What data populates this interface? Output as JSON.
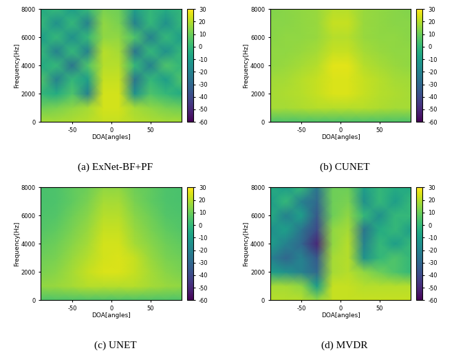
{
  "chart_data": [
    {
      "type": "heatmap",
      "caption": "(a) ExNet-BF+PF",
      "x_label": "DOA[angles]",
      "y_label": "Frequency[Hz]",
      "x": [
        -90,
        -70,
        -50,
        -30,
        -10,
        10,
        30,
        50,
        70,
        90
      ],
      "y": [
        0,
        1000,
        2000,
        3000,
        4000,
        5000,
        6000,
        7000,
        8000
      ],
      "xlim": [
        -90,
        90
      ],
      "xticks": [
        -50,
        0,
        50
      ],
      "ylim": [
        0,
        8000
      ],
      "yticks": [
        0,
        2000,
        4000,
        6000,
        8000
      ],
      "colorbar_range": [
        -60,
        30
      ],
      "colorbar_ticks": [
        -60,
        -50,
        -40,
        -30,
        -20,
        -10,
        0,
        10,
        20,
        30
      ],
      "cells": [
        [
          18,
          18,
          19,
          20,
          22,
          22,
          20,
          19,
          18,
          18
        ],
        [
          10,
          12,
          15,
          18,
          24,
          24,
          18,
          15,
          12,
          10
        ],
        [
          0,
          -5,
          5,
          -20,
          24,
          24,
          -15,
          5,
          0,
          -5
        ],
        [
          5,
          -20,
          0,
          -10,
          22,
          22,
          -25,
          0,
          -10,
          5
        ],
        [
          -5,
          0,
          -25,
          5,
          20,
          20,
          0,
          -20,
          5,
          0
        ],
        [
          0,
          -20,
          0,
          -20,
          20,
          18,
          -25,
          0,
          -15,
          0
        ],
        [
          -10,
          0,
          -15,
          0,
          15,
          15,
          5,
          -20,
          0,
          -10
        ],
        [
          0,
          -15,
          0,
          -20,
          15,
          12,
          -20,
          0,
          -15,
          0
        ],
        [
          -5,
          0,
          -10,
          0,
          12,
          10,
          -10,
          0,
          -5,
          0
        ]
      ]
    },
    {
      "type": "heatmap",
      "caption": "(b) CUNET",
      "x_label": "DOA[angles]",
      "y_label": "Frequency[Hz]",
      "x": [
        -90,
        -70,
        -50,
        -30,
        -10,
        10,
        30,
        50,
        70,
        90
      ],
      "y": [
        0,
        1000,
        2000,
        3000,
        4000,
        5000,
        6000,
        7000,
        8000
      ],
      "xlim": [
        -90,
        90
      ],
      "xticks": [
        -50,
        0,
        50
      ],
      "ylim": [
        0,
        8000
      ],
      "yticks": [
        0,
        2000,
        4000,
        6000,
        8000
      ],
      "colorbar_range": [
        -60,
        30
      ],
      "colorbar_ticks": [
        -60,
        -50,
        -40,
        -30,
        -20,
        -10,
        0,
        10,
        20,
        30
      ],
      "cells": [
        [
          5,
          5,
          5,
          5,
          5,
          5,
          5,
          5,
          5,
          5
        ],
        [
          18,
          18,
          19,
          20,
          20,
          20,
          20,
          19,
          18,
          18
        ],
        [
          18,
          19,
          20,
          22,
          25,
          25,
          22,
          20,
          19,
          18
        ],
        [
          17,
          18,
          20,
          22,
          25,
          25,
          22,
          20,
          18,
          17
        ],
        [
          15,
          16,
          18,
          20,
          26,
          26,
          20,
          18,
          16,
          15
        ],
        [
          15,
          15,
          16,
          18,
          22,
          22,
          18,
          16,
          15,
          15
        ],
        [
          14,
          15,
          15,
          16,
          20,
          20,
          16,
          15,
          15,
          14
        ],
        [
          14,
          14,
          15,
          16,
          22,
          22,
          16,
          15,
          14,
          14
        ],
        [
          13,
          14,
          15,
          16,
          20,
          20,
          16,
          15,
          14,
          13
        ]
      ]
    },
    {
      "type": "heatmap",
      "caption": "(c) UNET",
      "x_label": "DOA[angles]",
      "y_label": "Frequency[Hz]",
      "x": [
        -90,
        -70,
        -50,
        -30,
        -10,
        10,
        30,
        50,
        70,
        90
      ],
      "y": [
        0,
        1000,
        2000,
        3000,
        4000,
        5000,
        6000,
        7000,
        8000
      ],
      "xlim": [
        -90,
        90
      ],
      "xticks": [
        -50,
        0,
        50
      ],
      "ylim": [
        0,
        8000
      ],
      "yticks": [
        0,
        2000,
        4000,
        6000,
        8000
      ],
      "colorbar_range": [
        -60,
        30
      ],
      "colorbar_ticks": [
        -60,
        -50,
        -40,
        -30,
        -20,
        -10,
        0,
        10,
        20,
        30
      ],
      "cells": [
        [
          5,
          5,
          5,
          5,
          5,
          5,
          5,
          5,
          5,
          5
        ],
        [
          15,
          16,
          18,
          20,
          20,
          20,
          20,
          18,
          16,
          15
        ],
        [
          12,
          14,
          18,
          22,
          25,
          25,
          22,
          18,
          14,
          12
        ],
        [
          10,
          12,
          16,
          20,
          24,
          25,
          22,
          16,
          12,
          10
        ],
        [
          8,
          10,
          14,
          18,
          24,
          24,
          18,
          14,
          10,
          8
        ],
        [
          6,
          8,
          12,
          16,
          22,
          22,
          16,
          12,
          8,
          6
        ],
        [
          5,
          6,
          10,
          14,
          20,
          20,
          14,
          10,
          6,
          5
        ],
        [
          4,
          5,
          8,
          12,
          18,
          18,
          12,
          8,
          5,
          4
        ],
        [
          4,
          5,
          8,
          10,
          15,
          15,
          10,
          8,
          5,
          4
        ]
      ]
    },
    {
      "type": "heatmap",
      "caption": "(d) MVDR",
      "x_label": "DOA[angles]",
      "y_label": "Frequency[Hz]",
      "x": [
        -90,
        -70,
        -50,
        -30,
        -10,
        10,
        30,
        50,
        70,
        90
      ],
      "y": [
        0,
        1000,
        2000,
        3000,
        4000,
        5000,
        6000,
        7000,
        8000
      ],
      "xlim": [
        -90,
        90
      ],
      "xticks": [
        -50,
        0,
        50
      ],
      "ylim": [
        0,
        8000
      ],
      "yticks": [
        0,
        2000,
        4000,
        6000,
        8000
      ],
      "colorbar_range": [
        -60,
        30
      ],
      "colorbar_ticks": [
        -60,
        -50,
        -40,
        -30,
        -20,
        -10,
        0,
        10,
        20,
        30
      ],
      "cells": [
        [
          20,
          20,
          20,
          15,
          22,
          22,
          22,
          22,
          22,
          22
        ],
        [
          18,
          18,
          15,
          -10,
          22,
          22,
          20,
          20,
          20,
          20
        ],
        [
          -10,
          -15,
          -20,
          -30,
          18,
          20,
          15,
          10,
          5,
          0
        ],
        [
          -20,
          -30,
          -20,
          -35,
          18,
          20,
          -15,
          0,
          5,
          0
        ],
        [
          -10,
          -20,
          -30,
          -50,
          15,
          20,
          -20,
          0,
          -10,
          0
        ],
        [
          -15,
          -10,
          -25,
          -40,
          15,
          18,
          -25,
          -5,
          0,
          -10
        ],
        [
          -5,
          -20,
          -10,
          -35,
          10,
          15,
          0,
          -15,
          0,
          0
        ],
        [
          -10,
          0,
          -20,
          -30,
          10,
          12,
          -15,
          0,
          -10,
          0
        ],
        [
          -5,
          -10,
          0,
          -25,
          10,
          10,
          -10,
          0,
          -5,
          -5
        ]
      ]
    }
  ]
}
